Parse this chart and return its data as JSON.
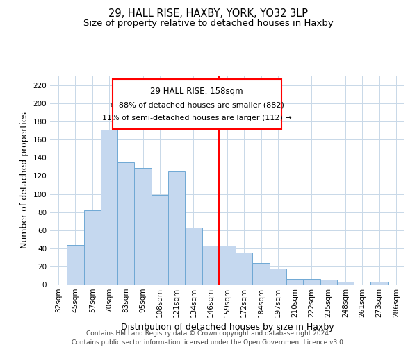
{
  "title1": "29, HALL RISE, HAXBY, YORK, YO32 3LP",
  "title2": "Size of property relative to detached houses in Haxby",
  "xlabel": "Distribution of detached houses by size in Haxby",
  "ylabel": "Number of detached properties",
  "categories": [
    "32sqm",
    "45sqm",
    "57sqm",
    "70sqm",
    "83sqm",
    "95sqm",
    "108sqm",
    "121sqm",
    "134sqm",
    "146sqm",
    "159sqm",
    "172sqm",
    "184sqm",
    "197sqm",
    "210sqm",
    "222sqm",
    "235sqm",
    "248sqm",
    "261sqm",
    "273sqm",
    "286sqm"
  ],
  "values": [
    0,
    44,
    82,
    171,
    135,
    129,
    99,
    125,
    63,
    43,
    43,
    35,
    24,
    18,
    6,
    6,
    5,
    3,
    0,
    3,
    0
  ],
  "bar_color": "#c5d8ef",
  "bar_edge_color": "#6fa8d4",
  "vline_idx": 10,
  "ylim": [
    0,
    230
  ],
  "yticks": [
    0,
    20,
    40,
    60,
    80,
    100,
    120,
    140,
    160,
    180,
    200,
    220
  ],
  "annotation_title": "29 HALL RISE: 158sqm",
  "annotation_line1": "← 88% of detached houses are smaller (882)",
  "annotation_line2": "11% of semi-detached houses are larger (112) →",
  "footer1": "Contains HM Land Registry data © Crown copyright and database right 2024.",
  "footer2": "Contains public sector information licensed under the Open Government Licence v3.0.",
  "bg_color": "#ffffff",
  "grid_color": "#c8d8e8",
  "title_fontsize": 10.5,
  "subtitle_fontsize": 9.5,
  "axis_label_fontsize": 9,
  "tick_fontsize": 7.5,
  "footer_fontsize": 6.5
}
